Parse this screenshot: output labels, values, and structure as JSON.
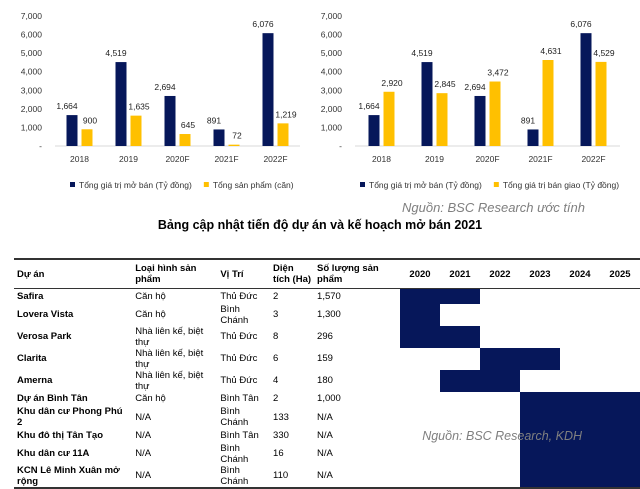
{
  "chart_data": [
    {
      "type": "bar",
      "categories": [
        "2018",
        "2019",
        "2020F",
        "2021F",
        "2022F"
      ],
      "ylim": [
        0,
        7000
      ],
      "yticks": [
        "-",
        "1,000",
        "2,000",
        "3,000",
        "4,000",
        "5,000",
        "6,000",
        "7,000"
      ],
      "series": [
        {
          "name": "Tổng giá trị mở bán (Tỷ đồng)",
          "values": [
            1664,
            4519,
            2694,
            891,
            6076
          ],
          "labels": [
            "1,664",
            "4,519",
            "2,694",
            "891",
            "6,076"
          ],
          "color": "#06175a"
        },
        {
          "name": "Tổng sản phẩm (căn)",
          "values": [
            900,
            1635,
            645,
            72,
            1219
          ],
          "labels": [
            "900",
            "1,635",
            "645",
            "72",
            "1,219"
          ],
          "color": "#ffc000"
        }
      ],
      "legend": "bottom"
    },
    {
      "type": "bar",
      "categories": [
        "2018",
        "2019",
        "2020F",
        "2021F",
        "2022F"
      ],
      "ylim": [
        0,
        7000
      ],
      "yticks": [
        "-",
        "1,000",
        "2,000",
        "3,000",
        "4,000",
        "5,000",
        "6,000",
        "7,000"
      ],
      "series": [
        {
          "name": "Tổng giá trị mở bán (Tỷ đồng)",
          "values": [
            1664,
            4519,
            2694,
            891,
            6076
          ],
          "labels": [
            "1,664",
            "4,519",
            "2,694",
            "891",
            "6,076"
          ],
          "color": "#06175a"
        },
        {
          "name": "Tổng giá trị bán giao (Tỷ đồng)",
          "values": [
            2920,
            2845,
            3472,
            4631,
            4529
          ],
          "labels": [
            "2,920",
            "2,845",
            "3,472",
            "4,631",
            "4,529"
          ],
          "color": "#ffc000"
        }
      ],
      "legend": "bottom"
    }
  ],
  "source1": "Nguồn: BSC Research ước tính",
  "title": "Bảng cập nhật tiến độ dự án và kế hoạch mở bán 2021",
  "table": {
    "headers": [
      "Dự án",
      "Loại hình sản phẩm",
      "Vị Trí",
      "Diện tích (Ha)",
      "Số lượng sản phẩm",
      "2020",
      "2021",
      "2022",
      "2023",
      "2024",
      "2025"
    ],
    "rows": [
      {
        "cells": [
          "Safira",
          "Căn hộ",
          "Thủ Đức",
          "2",
          "1,570"
        ],
        "years": [
          "2020",
          "2021"
        ]
      },
      {
        "cells": [
          "Lovera Vista",
          "Căn hộ",
          "Bình Chánh",
          "3",
          "1,300"
        ],
        "years": [
          "2020"
        ]
      },
      {
        "cells": [
          "Verosa Park",
          "Nhà liên kế, biệt thự",
          "Thủ Đức",
          "8",
          "296"
        ],
        "years": [
          "2020",
          "2021"
        ]
      },
      {
        "cells": [
          "Clarita",
          "Nhà liên kế, biệt thự",
          "Thủ Đức",
          "6",
          "159"
        ],
        "years": [
          "2022",
          "2023"
        ]
      },
      {
        "cells": [
          "Amerna",
          "Nhà liên kế, biệt thự",
          "Thủ Đức",
          "4",
          "180"
        ],
        "years": [
          "2021",
          "2022"
        ]
      },
      {
        "cells": [
          "Dự án Bình Tân",
          "Căn hộ",
          "Bình Tân",
          "2",
          "1,000"
        ],
        "years": [
          "2023",
          "2024",
          "2025"
        ]
      },
      {
        "cells": [
          "Khu dân cư Phong Phú 2",
          "N/A",
          "Bình Chánh",
          "133",
          "N/A"
        ],
        "years": [
          "2023",
          "2024",
          "2025"
        ]
      },
      {
        "cells": [
          "Khu đô thị Tân Tạo",
          "N/A",
          "Bình Tân",
          "330",
          "N/A"
        ],
        "years": [
          "2023",
          "2024",
          "2025"
        ]
      },
      {
        "cells": [
          "Khu dân cư 11A",
          "N/A",
          "Bình Chánh",
          "16",
          "N/A"
        ],
        "years": [
          "2023",
          "2024",
          "2025"
        ]
      },
      {
        "cells": [
          "KCN Lê Minh Xuân mở rộng",
          "N/A",
          "Bình Chánh",
          "110",
          "N/A"
        ],
        "years": [
          "2023",
          "2024",
          "2025"
        ]
      }
    ]
  },
  "source2": "Nguồn: BSC Research, KDH"
}
